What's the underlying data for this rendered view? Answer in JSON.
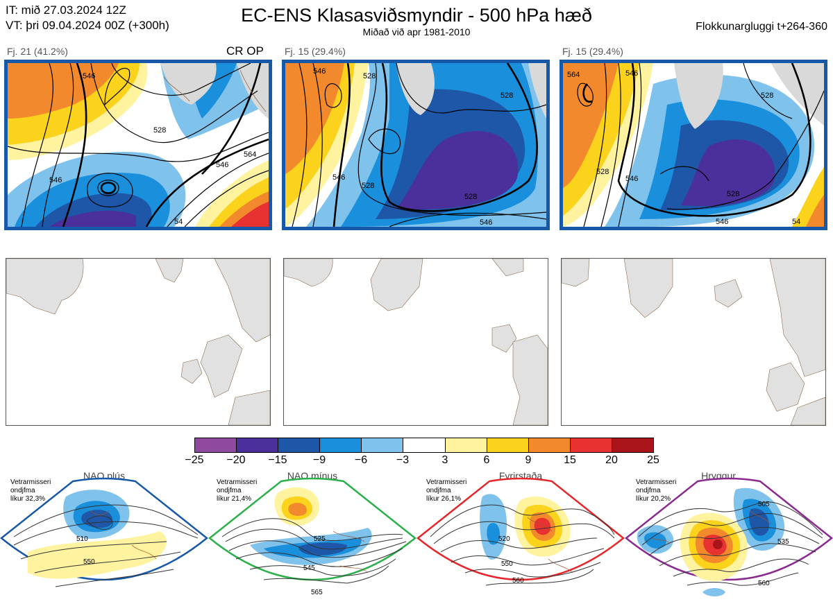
{
  "header": {
    "it_line": "IT: mið 27.03.2024 12Z",
    "vt_line": "VT: þri 09.04.2024 00Z  (+300h)",
    "title": "EC-ENS Klasasviðsmyndir - 500 hPa hæð",
    "subtitle": "Miðað við apr 1981-2010",
    "window": "Flokkunargluggi t+264-360"
  },
  "clusters": [
    {
      "label": "Fj. 21 (41.2%)",
      "op_label": "CR OP",
      "contours": [
        "546",
        "528",
        "546",
        "564",
        "546",
        "54"
      ]
    },
    {
      "label": "Fj. 15 (29.4%)",
      "op_label": "",
      "contours": [
        "546",
        "528",
        "546",
        "528",
        "528",
        "546",
        "528"
      ]
    },
    {
      "label": "Fj. 15 (29.4%)",
      "op_label": "",
      "contours": [
        "564",
        "546",
        "528",
        "546",
        "528",
        "546",
        "528",
        "54"
      ]
    }
  ],
  "colorbar": {
    "ticks": [
      "−25",
      "−20",
      "−15",
      "−9",
      "−6",
      "−3",
      "3",
      "6",
      "9",
      "15",
      "20",
      "25"
    ],
    "colors": [
      "#8f4aa0",
      "#4b2f9a",
      "#1e57a8",
      "#1a8fdb",
      "#7fc2ec",
      "#ffffff",
      "#fff3a0",
      "#fbd21c",
      "#f28a2d",
      "#e83232",
      "#a8141a"
    ]
  },
  "regimes": [
    {
      "name": "NAO plús",
      "note_l1": "Vetrarmisseri",
      "note_l2": "ondjfma",
      "note_l3": "líkur 32,3%",
      "dot_color": "#1758a8",
      "border_color": "#1758a8",
      "contours": [
        "510",
        "550"
      ]
    },
    {
      "name": "NAO mínus",
      "note_l1": "Vetrarmisseri",
      "note_l2": "ondjfma",
      "note_l3": "líkur 21,4%",
      "dot_color": "#2bb04a",
      "border_color": "#2bb04a",
      "contours": [
        "525",
        "545",
        "565"
      ]
    },
    {
      "name": "Fyrirstaða",
      "note_l1": "Vetrarmisseri",
      "note_l2": "ondjfma",
      "note_l3": "líkur 26,1%",
      "dot_color": "#e8252a",
      "border_color": "#e8252a",
      "contours": [
        "520",
        "550",
        "560"
      ]
    },
    {
      "name": "Hryggur",
      "note_l1": "Vetrarmisseri",
      "note_l2": "ondjfma",
      "note_l3": "líkur 20,2%",
      "dot_color": "#ee82ee",
      "border_color": "#8a2a8f",
      "contours": [
        "505",
        "535",
        "560"
      ]
    }
  ]
}
